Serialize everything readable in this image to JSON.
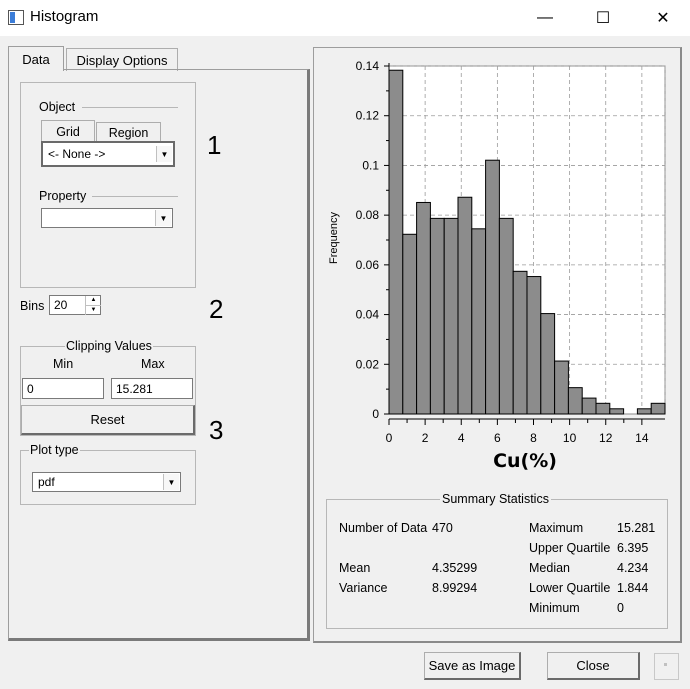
{
  "window": {
    "title": "Histogram",
    "minimize": "—",
    "maximize": "☐",
    "close": "✕"
  },
  "tabs": [
    {
      "label": "Data",
      "active": true
    },
    {
      "label": "Display Options",
      "active": false
    }
  ],
  "data_tab": {
    "object": {
      "title": "Object",
      "subtabs": [
        {
          "label": "Grid",
          "active": true
        },
        {
          "label": "Region",
          "active": false
        }
      ],
      "selected": "<- None ->",
      "annotation": "1"
    },
    "property": {
      "title": "Property",
      "selected": ""
    },
    "bins": {
      "label": "Bins",
      "value": "20",
      "annotation": "2"
    },
    "clipping": {
      "title": "Clipping Values",
      "min_label": "Min",
      "max_label": "Max",
      "min_value": "0",
      "max_value": "15.281",
      "reset_label": "Reset",
      "annotation": "3"
    },
    "plot_type": {
      "title": "Plot type",
      "selected": "pdf"
    }
  },
  "chart_data": {
    "type": "bar",
    "xlabel": "Cu(%)",
    "ylabel": "Frequency",
    "bin_edges": [
      0,
      0.764,
      1.528,
      2.292,
      3.056,
      3.82,
      4.584,
      5.348,
      6.112,
      6.876,
      7.64,
      8.405,
      9.169,
      9.933,
      10.697,
      11.461,
      12.225,
      12.989,
      13.753,
      14.517,
      15.281
    ],
    "values": [
      0.1383,
      0.0723,
      0.0851,
      0.0787,
      0.0787,
      0.0872,
      0.0745,
      0.1021,
      0.0787,
      0.0574,
      0.0553,
      0.0404,
      0.0213,
      0.0106,
      0.0064,
      0.0043,
      0.0021,
      0.0,
      0.0021,
      0.0043
    ],
    "xlim": [
      0,
      15.281
    ],
    "ylim": [
      0,
      0.14
    ],
    "xticks": [
      0,
      2,
      4,
      6,
      8,
      10,
      12,
      14
    ],
    "yticks": [
      0,
      0.02,
      0.04,
      0.06,
      0.08,
      0.1,
      0.12,
      0.14
    ],
    "ytick_labels": [
      "0",
      "0.02",
      "0.04",
      "0.06",
      "0.08",
      "0.1",
      "0.12",
      "0.14"
    ],
    "grid": true,
    "bar_color": "#8c8c8c"
  },
  "summary": {
    "title": "Summary Statistics",
    "left": [
      {
        "label": "Number of Data",
        "value": "470"
      },
      {
        "label": "Mean",
        "value": "4.35299"
      },
      {
        "label": "Variance",
        "value": "8.99294"
      }
    ],
    "right": [
      {
        "label": "Maximum",
        "value": "15.281"
      },
      {
        "label": "Upper Quartile",
        "value": "6.395"
      },
      {
        "label": "Median",
        "value": "4.234"
      },
      {
        "label": "Lower Quartile",
        "value": "1.844"
      },
      {
        "label": "Minimum",
        "value": "0"
      }
    ]
  },
  "footer": {
    "save_label": "Save as Image",
    "close_label": "Close"
  }
}
